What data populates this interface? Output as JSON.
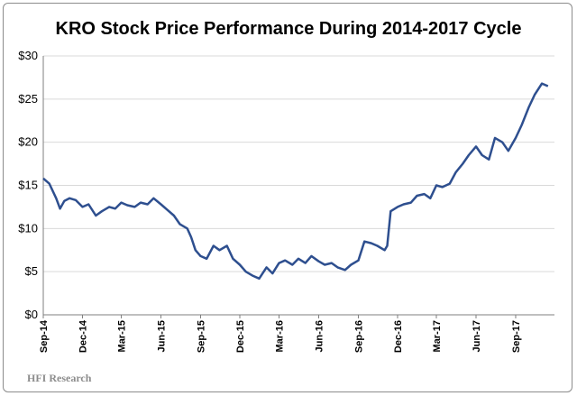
{
  "chart_data": {
    "type": "line",
    "title": "KRO Stock Price Performance During 2014-2017 Cycle",
    "xlabel": "",
    "ylabel": "",
    "ylim": [
      0,
      30
    ],
    "yticks": [
      "$0",
      "$5",
      "$10",
      "$15",
      "$20",
      "$25",
      "$30"
    ],
    "xticks": [
      "Sep-14",
      "Dec-14",
      "Mar-15",
      "Jun-15",
      "Sep-15",
      "Dec-15",
      "Mar-16",
      "Jun-16",
      "Sep-16",
      "Dec-16",
      "Mar-17",
      "Jun-17",
      "Sep-17"
    ],
    "grid": "horizontal",
    "line_color": "#2e4f8f",
    "x": [
      "2014-09-01",
      "2014-09-15",
      "2014-10-01",
      "2014-10-10",
      "2014-10-20",
      "2014-11-01",
      "2014-11-15",
      "2014-12-01",
      "2014-12-15",
      "2015-01-01",
      "2015-01-15",
      "2015-02-01",
      "2015-02-15",
      "2015-03-01",
      "2015-03-15",
      "2015-04-01",
      "2015-04-15",
      "2015-05-01",
      "2015-05-15",
      "2015-06-01",
      "2015-06-15",
      "2015-07-01",
      "2015-07-15",
      "2015-08-01",
      "2015-08-10",
      "2015-08-20",
      "2015-09-01",
      "2015-09-15",
      "2015-10-01",
      "2015-10-15",
      "2015-11-01",
      "2015-11-15",
      "2015-12-01",
      "2015-12-15",
      "2016-01-01",
      "2016-01-15",
      "2016-02-01",
      "2016-02-15",
      "2016-03-01",
      "2016-03-15",
      "2016-04-01",
      "2016-04-15",
      "2016-05-01",
      "2016-05-15",
      "2016-06-01",
      "2016-06-15",
      "2016-07-01",
      "2016-07-15",
      "2016-08-01",
      "2016-08-15",
      "2016-09-01",
      "2016-09-15",
      "2016-10-01",
      "2016-10-15",
      "2016-11-01",
      "2016-11-07",
      "2016-11-15",
      "2016-12-01",
      "2016-12-15",
      "2017-01-01",
      "2017-01-15",
      "2017-02-01",
      "2017-02-15",
      "2017-03-01",
      "2017-03-15",
      "2017-04-01",
      "2017-04-15",
      "2017-05-01",
      "2017-05-15",
      "2017-06-01",
      "2017-06-15",
      "2017-07-01",
      "2017-07-15",
      "2017-08-01",
      "2017-08-15",
      "2017-09-01",
      "2017-09-15",
      "2017-10-01",
      "2017-10-15",
      "2017-11-01",
      "2017-11-15"
    ],
    "values": [
      15.8,
      15.2,
      13.5,
      12.3,
      13.2,
      13.5,
      13.3,
      12.5,
      12.8,
      11.5,
      12.0,
      12.5,
      12.3,
      13.0,
      12.7,
      12.5,
      13.0,
      12.8,
      13.5,
      12.8,
      12.2,
      11.5,
      10.5,
      10.0,
      9.0,
      7.5,
      6.8,
      6.5,
      8.0,
      7.5,
      8.0,
      6.5,
      5.8,
      5.0,
      4.5,
      4.2,
      5.5,
      4.8,
      6.0,
      6.3,
      5.8,
      6.5,
      6.0,
      6.8,
      6.2,
      5.8,
      6.0,
      5.5,
      5.2,
      5.8,
      6.3,
      8.5,
      8.3,
      8.0,
      7.5,
      8.0,
      12.0,
      12.5,
      12.8,
      13.0,
      13.8,
      14.0,
      13.5,
      15.0,
      14.8,
      15.2,
      16.5,
      17.5,
      18.5,
      19.5,
      18.5,
      18.0,
      20.5,
      20.0,
      19.0,
      20.5,
      22.0,
      24.0,
      25.5,
      26.8,
      26.5
    ]
  },
  "source": "HFI Research"
}
